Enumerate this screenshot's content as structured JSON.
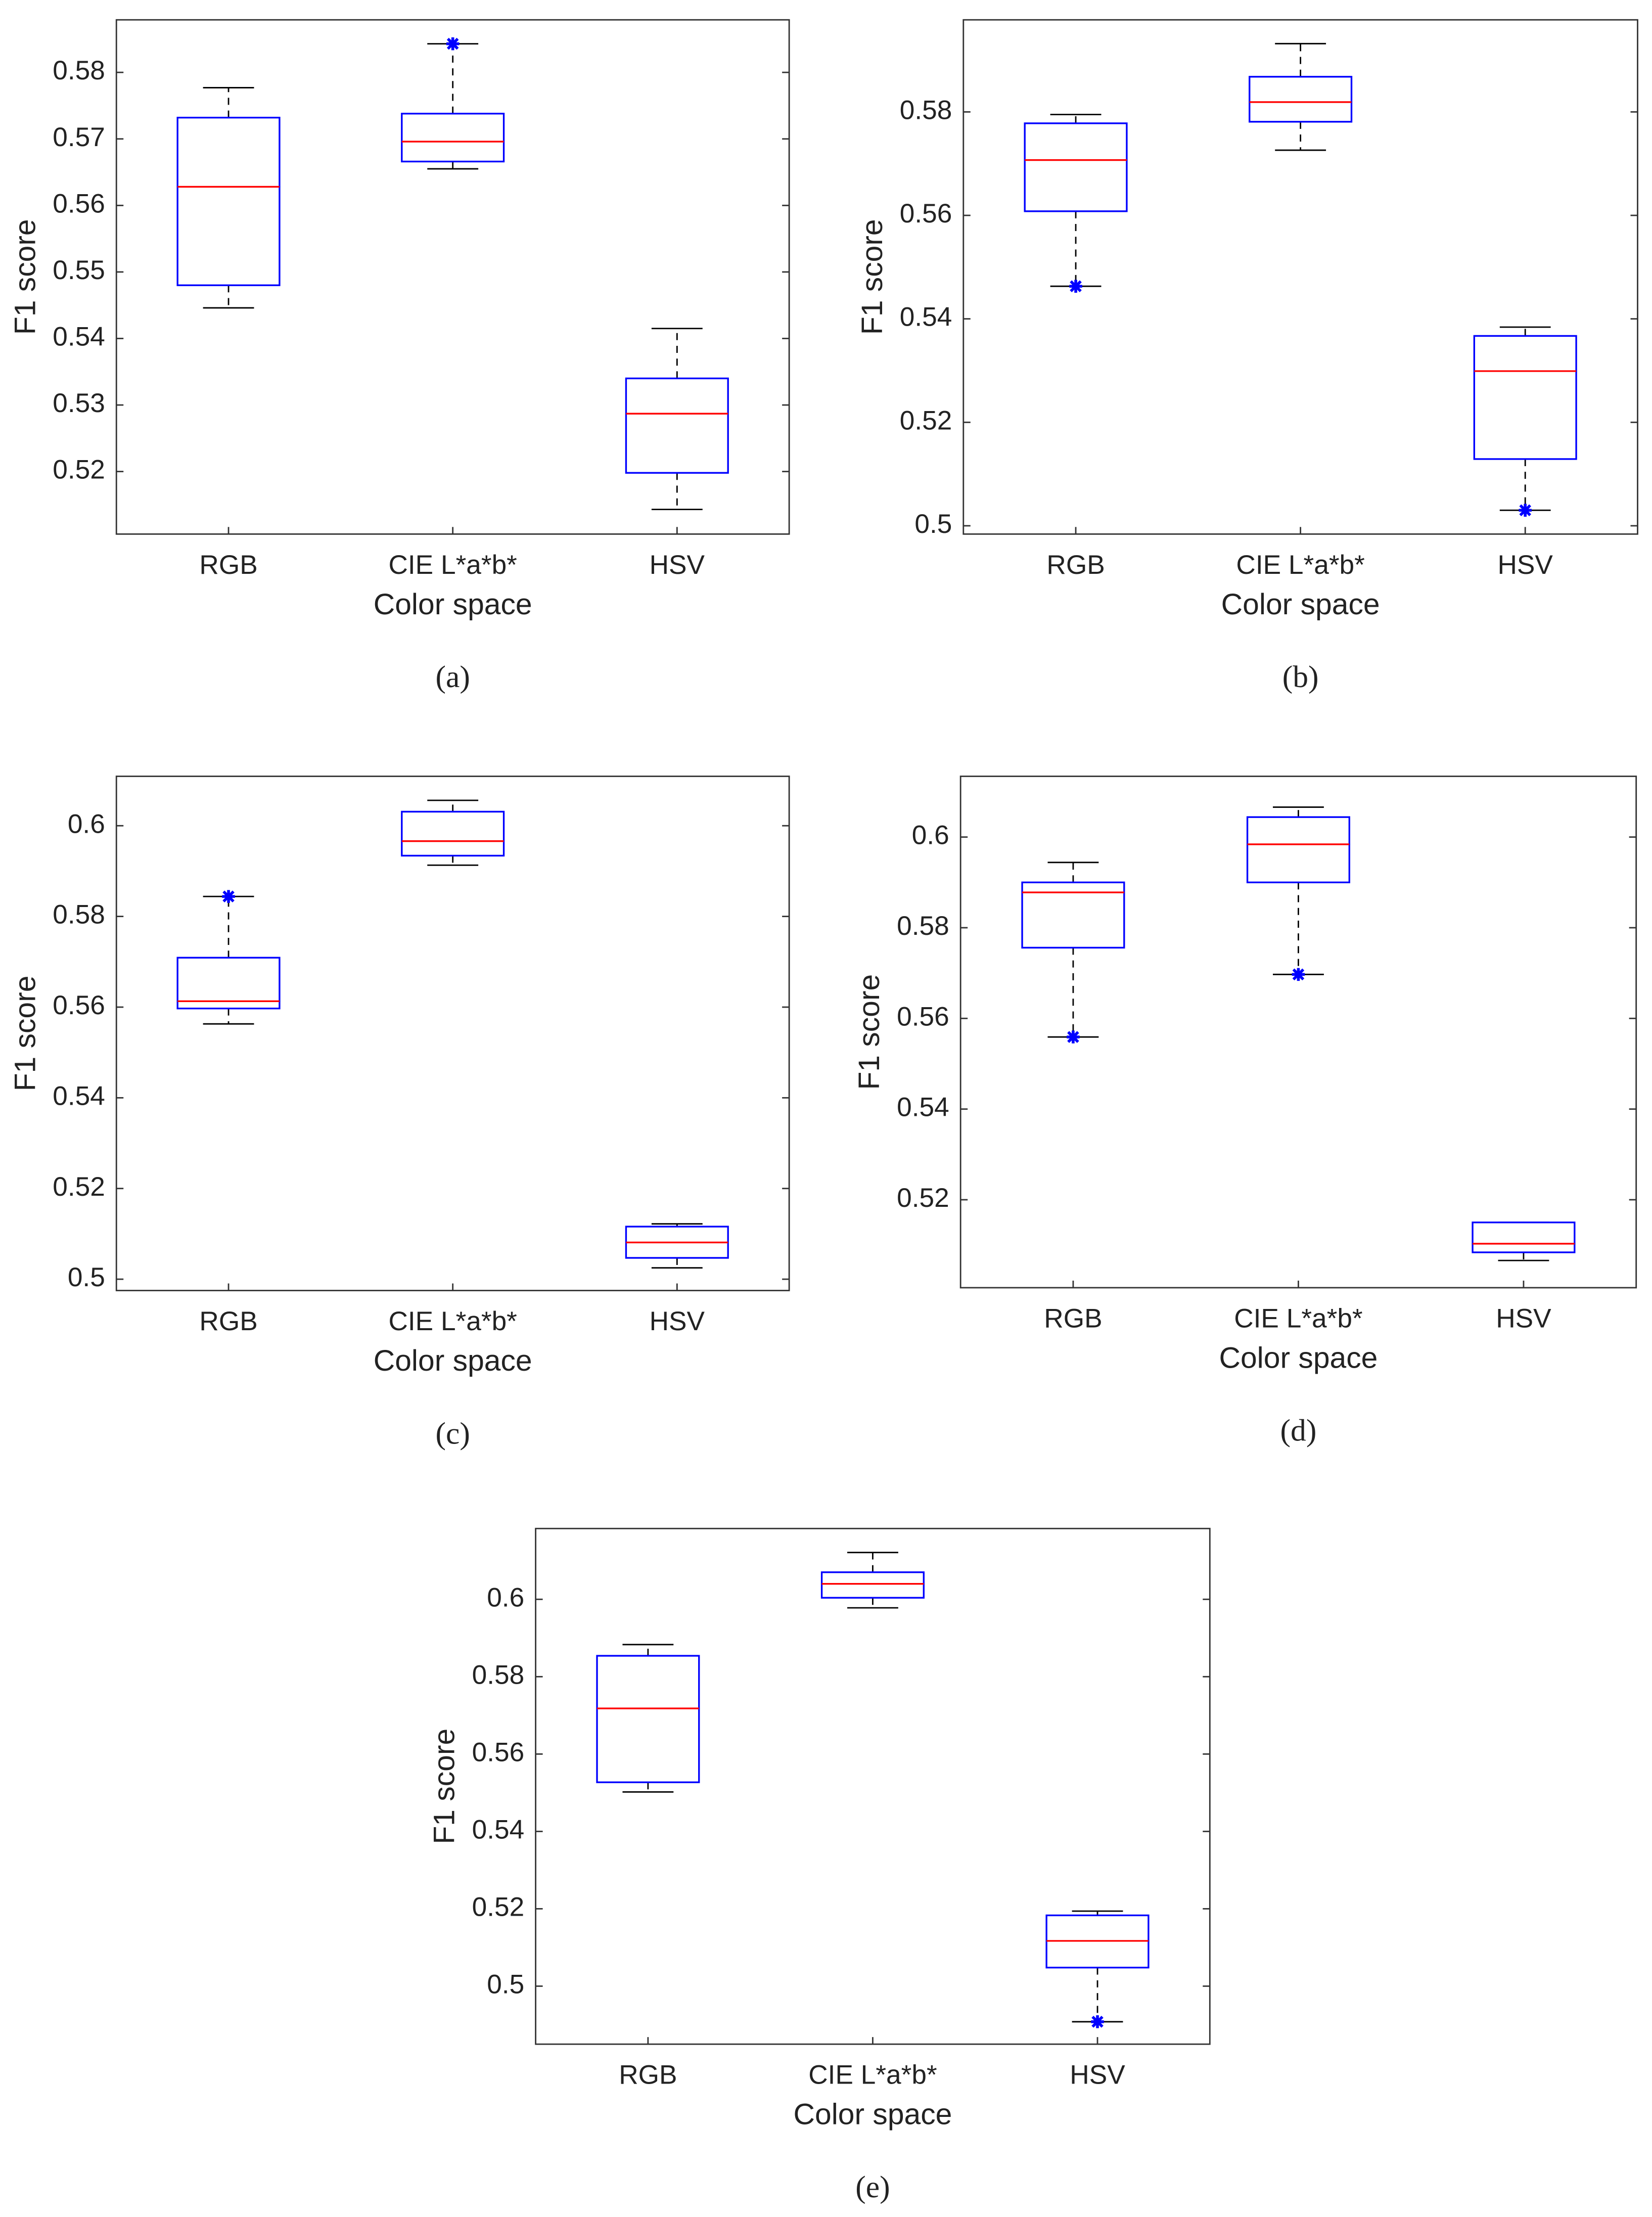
{
  "chart_data": [
    {
      "type": "box",
      "caption": "(a)",
      "xlabel": "Color space",
      "ylabel": "F1 score",
      "categories": [
        "RGB",
        "CIE L*a*b*",
        "HSV"
      ],
      "ylim": [
        0.5106,
        0.5879
      ],
      "yticks": [
        0.52,
        0.53,
        0.54,
        0.55,
        0.56,
        0.57,
        0.58
      ],
      "box_color": "#0000ff",
      "median_color": "#ff0000",
      "boxes": [
        {
          "whisker_low": 0.5446,
          "q1": 0.548,
          "median": 0.5628,
          "q3": 0.5732,
          "whisker_high": 0.5777,
          "outliers": []
        },
        {
          "whisker_low": 0.5655,
          "q1": 0.5666,
          "median": 0.5696,
          "q3": 0.5738,
          "whisker_high": 0.5843,
          "outliers": [
            0.5843
          ]
        },
        {
          "whisker_low": 0.5143,
          "q1": 0.5198,
          "median": 0.5287,
          "q3": 0.534,
          "whisker_high": 0.5415,
          "outliers": []
        }
      ]
    },
    {
      "type": "box",
      "caption": "(b)",
      "xlabel": "Color space",
      "ylabel": "F1 score",
      "categories": [
        "RGB",
        "CIE L*a*b*",
        "HSV"
      ],
      "ylim": [
        0.4984,
        0.5978
      ],
      "yticks": [
        0.5,
        0.52,
        0.54,
        0.56,
        0.58
      ],
      "box_color": "#0000ff",
      "median_color": "#ff0000",
      "boxes": [
        {
          "whisker_low": 0.5463,
          "q1": 0.5608,
          "median": 0.5707,
          "q3": 0.5778,
          "whisker_high": 0.5795,
          "outliers": [
            0.5463
          ]
        },
        {
          "whisker_low": 0.5726,
          "q1": 0.5781,
          "median": 0.5819,
          "q3": 0.5868,
          "whisker_high": 0.5932,
          "outliers": []
        },
        {
          "whisker_low": 0.503,
          "q1": 0.5129,
          "median": 0.5299,
          "q3": 0.5367,
          "whisker_high": 0.5384,
          "outliers": [
            0.503
          ]
        }
      ]
    },
    {
      "type": "box",
      "caption": "(c)",
      "xlabel": "Color space",
      "ylabel": "F1 score",
      "categories": [
        "RGB",
        "CIE L*a*b*",
        "HSV"
      ],
      "ylim": [
        0.4975,
        0.6109
      ],
      "yticks": [
        0.5,
        0.52,
        0.54,
        0.56,
        0.58,
        0.6
      ],
      "box_color": "#0000ff",
      "median_color": "#ff0000",
      "boxes": [
        {
          "whisker_low": 0.5563,
          "q1": 0.5597,
          "median": 0.5613,
          "q3": 0.5709,
          "whisker_high": 0.5844,
          "outliers": [
            0.5844
          ]
        },
        {
          "whisker_low": 0.5913,
          "q1": 0.5934,
          "median": 0.5966,
          "q3": 0.6031,
          "whisker_high": 0.6056,
          "outliers": []
        },
        {
          "whisker_low": 0.5025,
          "q1": 0.5047,
          "median": 0.5081,
          "q3": 0.5116,
          "whisker_high": 0.5122,
          "outliers": []
        }
      ]
    },
    {
      "type": "box",
      "caption": "(d)",
      "xlabel": "Color space",
      "ylabel": "F1 score",
      "categories": [
        "RGB",
        "CIE L*a*b*",
        "HSV"
      ],
      "ylim": [
        0.5006,
        0.6134
      ],
      "yticks": [
        0.52,
        0.54,
        0.56,
        0.58,
        0.6
      ],
      "box_color": "#0000ff",
      "median_color": "#ff0000",
      "boxes": [
        {
          "whisker_low": 0.5559,
          "q1": 0.5756,
          "median": 0.5878,
          "q3": 0.59,
          "whisker_high": 0.5944,
          "outliers": [
            0.5559
          ]
        },
        {
          "whisker_low": 0.5697,
          "q1": 0.59,
          "median": 0.5984,
          "q3": 0.6044,
          "whisker_high": 0.6066,
          "outliers": [
            0.5697
          ]
        },
        {
          "whisker_low": 0.5066,
          "q1": 0.5084,
          "median": 0.5103,
          "q3": 0.515,
          "whisker_high": 0.515,
          "outliers": []
        }
      ]
    },
    {
      "type": "box",
      "caption": "(e)",
      "xlabel": "Color space",
      "ylabel": "F1 score",
      "categories": [
        "RGB",
        "CIE L*a*b*",
        "HSV"
      ],
      "ylim": [
        0.485,
        0.6183
      ],
      "yticks": [
        0.5,
        0.52,
        0.54,
        0.56,
        0.58,
        0.6
      ],
      "box_color": "#0000ff",
      "median_color": "#ff0000",
      "boxes": [
        {
          "whisker_low": 0.5502,
          "q1": 0.5527,
          "median": 0.5718,
          "q3": 0.5854,
          "whisker_high": 0.5883,
          "outliers": []
        },
        {
          "whisker_low": 0.5978,
          "q1": 0.6004,
          "median": 0.604,
          "q3": 0.607,
          "whisker_high": 0.6121,
          "outliers": []
        },
        {
          "whisker_low": 0.4908,
          "q1": 0.5048,
          "median": 0.5117,
          "q3": 0.5183,
          "whisker_high": 0.5194,
          "outliers": [
            0.4908
          ]
        }
      ]
    }
  ]
}
